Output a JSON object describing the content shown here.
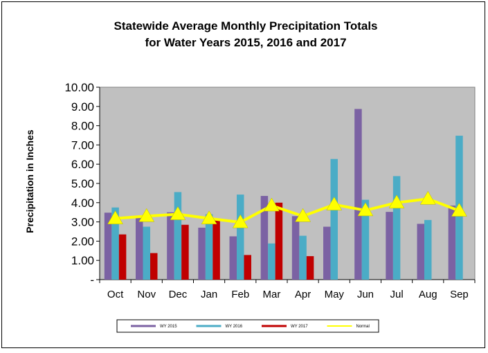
{
  "chart_data": {
    "type": "bar",
    "title_line1": "Statewide Average Monthly Precipitation Totals",
    "title_line2": "for Water Years 2015, 2016 and 2017",
    "ylabel": "Precipitation in Inches",
    "xlabel": "",
    "ylim": [
      0,
      10
    ],
    "yticks": [
      "-",
      "1.00",
      "2.00",
      "3.00",
      "4.00",
      "5.00",
      "6.00",
      "7.00",
      "8.00",
      "9.00",
      "10.00"
    ],
    "categories": [
      "Oct",
      "Nov",
      "Dec",
      "Jan",
      "Feb",
      "Mar",
      "Apr",
      "May",
      "Jun",
      "Jul",
      "Aug",
      "Sep"
    ],
    "grid": false,
    "legend_position": "bottom",
    "series": [
      {
        "name": "WY 2015",
        "kind": "bar",
        "color": "#7B62A3",
        "values": [
          3.48,
          3.22,
          3.5,
          2.7,
          2.25,
          4.35,
          3.3,
          2.75,
          8.87,
          3.52,
          2.9,
          3.85
        ]
      },
      {
        "name": "WY 2016",
        "kind": "bar",
        "color": "#4BACC6",
        "values": [
          3.75,
          2.75,
          4.55,
          3.4,
          4.42,
          1.88,
          2.28,
          6.27,
          4.15,
          5.38,
          3.1,
          7.48
        ]
      },
      {
        "name": "WY 2017",
        "kind": "bar",
        "color": "#C00000",
        "values": [
          2.35,
          1.38,
          2.85,
          3.12,
          1.28,
          4.0,
          1.22,
          null,
          null,
          null,
          null,
          null
        ]
      },
      {
        "name": "Normal",
        "kind": "line",
        "color": "#FFFF00",
        "values": [
          3.18,
          3.3,
          3.4,
          3.18,
          2.98,
          3.85,
          3.3,
          3.9,
          3.6,
          4.0,
          4.2,
          3.58
        ]
      }
    ]
  },
  "colors": {
    "plot_background": "#C0C0C0",
    "marker_fill": "#FFFF00"
  }
}
